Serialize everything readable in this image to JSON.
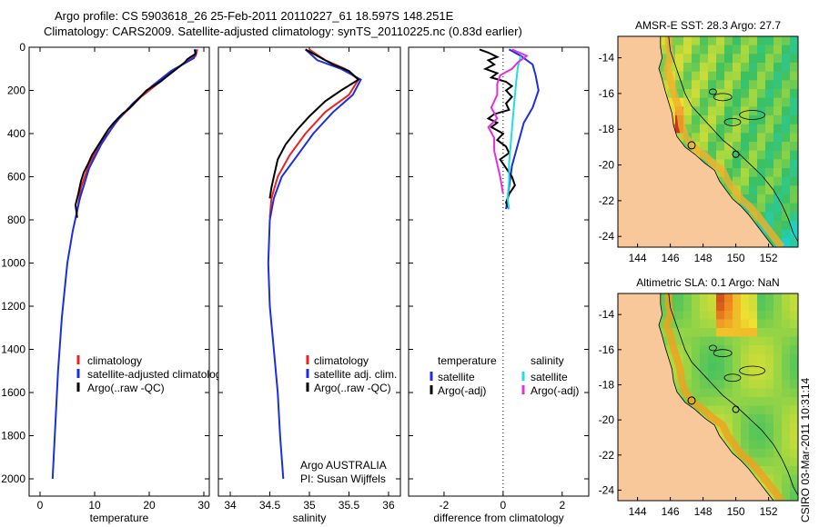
{
  "header": {
    "line1": "Argo profile: CS 5903618_26 25-Feb-2011 20110227_61 18.597S 148.251E",
    "line2": "Climatology: CARS2009. Satellite-adjusted climatology: synTS_20110225.nc (0.83d earlier)"
  },
  "colors": {
    "climatology": "#ee2020",
    "satellite": "#1c2ee0",
    "argo": "#000000",
    "cyan": "#22dde0",
    "magenta": "#e030e0",
    "land": "#f8c89a"
  },
  "chart_data": [
    {
      "type": "line",
      "name": "temperature-profile",
      "xlabel": "temperature",
      "ylabel": "",
      "xlim": [
        -2,
        31
      ],
      "ylim": [
        2080,
        0
      ],
      "xticks": [
        "0",
        "10",
        "20",
        "30"
      ],
      "yticks": [
        "0",
        "200",
        "400",
        "600",
        "800",
        "1000",
        "1200",
        "1400",
        "1600",
        "1800",
        "2000"
      ],
      "legend": [
        "climatology",
        "satellite-adjusted climatology",
        "Argo(..raw -QC)"
      ],
      "series": [
        {
          "name": "climatology",
          "color": "climatology",
          "points": [
            [
              28.8,
              10
            ],
            [
              28.5,
              40
            ],
            [
              25.5,
              90
            ],
            [
              22.5,
              150
            ],
            [
              18.5,
              230
            ],
            [
              14.5,
              330
            ],
            [
              11.2,
              440
            ],
            [
              9.0,
              540
            ],
            [
              7.5,
              650
            ],
            [
              6.6,
              790
            ]
          ]
        },
        {
          "name": "satellite-adjusted climatology",
          "color": "satellite",
          "points": [
            [
              28.6,
              10
            ],
            [
              28.2,
              50
            ],
            [
              24,
              110
            ],
            [
              20.5,
              180
            ],
            [
              17,
              260
            ],
            [
              13.8,
              350
            ],
            [
              11.2,
              450
            ],
            [
              9.0,
              560
            ],
            [
              7.3,
              700
            ],
            [
              6.0,
              850
            ],
            [
              5.0,
              1000
            ],
            [
              4.0,
              1250
            ],
            [
              3.3,
              1500
            ],
            [
              2.8,
              1750
            ],
            [
              2.3,
              2000
            ]
          ]
        },
        {
          "name": "Argo(..raw -QC)",
          "color": "argo",
          "points": [
            [
              28.3,
              10
            ],
            [
              28.5,
              30
            ],
            [
              27,
              55
            ],
            [
              26.5,
              70
            ],
            [
              25,
              100
            ],
            [
              23.5,
              130
            ],
            [
              22,
              160
            ],
            [
              19.5,
              200
            ],
            [
              18,
              240
            ],
            [
              16.5,
              280
            ],
            [
              15,
              310
            ],
            [
              13.5,
              350
            ],
            [
              12.5,
              380
            ],
            [
              11.5,
              420
            ],
            [
              10.5,
              460
            ],
            [
              9.5,
              500
            ],
            [
              8.8,
              540
            ],
            [
              8.0,
              580
            ],
            [
              7.5,
              620
            ],
            [
              7.0,
              680
            ],
            [
              6.5,
              730
            ],
            [
              6.8,
              790
            ]
          ]
        }
      ]
    },
    {
      "type": "line",
      "name": "salinity-profile",
      "xlabel": "salinity",
      "xlim": [
        33.85,
        36.15
      ],
      "ylim": [
        2080,
        0
      ],
      "xticks": [
        "34",
        "34.5",
        "35",
        "35.5",
        "36"
      ],
      "legend": [
        "climatology",
        "satellite adj. clim.",
        "Argo(..raw -QC)"
      ],
      "annotation": [
        "Argo AUSTRALIA",
        "PI: Susan Wijffels"
      ],
      "series": [
        {
          "name": "climatology",
          "color": "climatology",
          "points": [
            [
              35.0,
              10
            ],
            [
              35.2,
              60
            ],
            [
              35.45,
              100
            ],
            [
              35.62,
              150
            ],
            [
              35.5,
              220
            ],
            [
              35.2,
              300
            ],
            [
              34.95,
              400
            ],
            [
              34.75,
              500
            ],
            [
              34.6,
              600
            ],
            [
              34.52,
              700
            ],
            [
              34.5,
              790
            ]
          ]
        },
        {
          "name": "satellite adj. clim.",
          "color": "satellite",
          "points": [
            [
              34.95,
              10
            ],
            [
              35.1,
              60
            ],
            [
              35.4,
              100
            ],
            [
              35.65,
              150
            ],
            [
              35.55,
              220
            ],
            [
              35.3,
              300
            ],
            [
              35.05,
              400
            ],
            [
              34.85,
              500
            ],
            [
              34.65,
              600
            ],
            [
              34.55,
              700
            ],
            [
              34.5,
              800
            ],
            [
              34.48,
              1000
            ],
            [
              34.5,
              1200
            ],
            [
              34.55,
              1400
            ],
            [
              34.6,
              1600
            ],
            [
              34.63,
              1800
            ],
            [
              34.67,
              2000
            ]
          ]
        },
        {
          "name": "Argo(..raw -QC)",
          "color": "argo",
          "points": [
            [
              34.95,
              10
            ],
            [
              35.1,
              40
            ],
            [
              35.3,
              80
            ],
            [
              35.5,
              110
            ],
            [
              35.62,
              150
            ],
            [
              35.4,
              200
            ],
            [
              35.2,
              250
            ],
            [
              35.0,
              320
            ],
            [
              34.85,
              380
            ],
            [
              34.7,
              450
            ],
            [
              34.6,
              520
            ],
            [
              34.55,
              600
            ],
            [
              34.52,
              650
            ],
            [
              34.5,
              700
            ]
          ]
        }
      ]
    },
    {
      "type": "line",
      "name": "difference-profile",
      "xlabel": "difference from climatology",
      "xlim": [
        -3.2,
        2.9
      ],
      "ylim": [
        2080,
        0
      ],
      "xticks": [
        "-2",
        "0",
        "2"
      ],
      "legend_left": [
        "temperature",
        "satellite",
        "Argo(-adj)"
      ],
      "legend_right": [
        "salinity",
        "satellite",
        "Argo(-adj)"
      ],
      "series": [
        {
          "name": "temperature satellite",
          "color": "satellite",
          "points": [
            [
              0.2,
              10
            ],
            [
              0.6,
              40
            ],
            [
              1.0,
              80
            ],
            [
              1.1,
              130
            ],
            [
              1.2,
              200
            ],
            [
              1.0,
              280
            ],
            [
              0.7,
              350
            ],
            [
              0.5,
              450
            ],
            [
              0.3,
              550
            ],
            [
              0.2,
              650
            ],
            [
              0.1,
              750
            ]
          ]
        },
        {
          "name": "temperature Argo(-adj)",
          "color": "argo",
          "points": [
            [
              -0.8,
              10
            ],
            [
              -0.5,
              25
            ],
            [
              -0.2,
              45
            ],
            [
              -0.5,
              60
            ],
            [
              -0.3,
              80
            ],
            [
              -0.6,
              100
            ],
            [
              -0.2,
              120
            ],
            [
              -0.4,
              140
            ],
            [
              0.1,
              160
            ],
            [
              0.3,
              180
            ],
            [
              0.1,
              200
            ],
            [
              0.3,
              230
            ],
            [
              0.1,
              260
            ],
            [
              0.2,
              290
            ],
            [
              -0.3,
              310
            ],
            [
              -0.5,
              330
            ],
            [
              -0.2,
              350
            ],
            [
              -0.4,
              370
            ],
            [
              0.0,
              400
            ],
            [
              -0.2,
              430
            ],
            [
              0.1,
              460
            ],
            [
              0.2,
              490
            ],
            [
              -0.1,
              520
            ],
            [
              0.1,
              560
            ],
            [
              0.3,
              600
            ],
            [
              0.4,
              640
            ],
            [
              0.2,
              680
            ],
            [
              0.1,
              720
            ],
            [
              0.2,
              750
            ]
          ]
        },
        {
          "name": "salinity satellite",
          "color": "cyan",
          "points": [
            [
              0.6,
              40
            ],
            [
              0.5,
              90
            ],
            [
              0.45,
              150
            ],
            [
              0.4,
              220
            ],
            [
              0.35,
              300
            ],
            [
              0.3,
              380
            ],
            [
              0.25,
              460
            ],
            [
              0.2,
              540
            ],
            [
              0.2,
              620
            ],
            [
              0.15,
              700
            ],
            [
              0.2,
              750
            ]
          ]
        },
        {
          "name": "salinity Argo(-adj)",
          "color": "magenta",
          "points": [
            [
              0.3,
              10
            ],
            [
              0.8,
              40
            ],
            [
              0.5,
              70
            ],
            [
              0.3,
              100
            ],
            [
              -0.1,
              130
            ],
            [
              -0.2,
              170
            ],
            [
              -0.2,
              220
            ],
            [
              -0.4,
              280
            ],
            [
              -0.2,
              330
            ],
            [
              -0.5,
              370
            ],
            [
              -0.3,
              420
            ],
            [
              -0.3,
              480
            ],
            [
              -0.2,
              540
            ],
            [
              -0.1,
              600
            ],
            [
              0.0,
              680
            ]
          ]
        }
      ]
    },
    {
      "type": "heatmap",
      "name": "sst-map",
      "title": "AMSR-E SST: 28.3 Argo: 27.7",
      "xlim": [
        142.8,
        153.8
      ],
      "ylim": [
        -24.6,
        -12.8
      ],
      "xticks": [
        "144",
        "146",
        "148",
        "150",
        "152"
      ],
      "yticks": [
        "-14",
        "-16",
        "-18",
        "-20",
        "-22",
        "-24"
      ]
    },
    {
      "type": "heatmap",
      "name": "sla-map",
      "title": "Altimetric SLA: 0.1 Argo: NaN",
      "xlim": [
        142.8,
        153.8
      ],
      "ylim": [
        -24.6,
        -12.8
      ],
      "xticks": [
        "144",
        "146",
        "148",
        "150",
        "152"
      ],
      "yticks": [
        "-14",
        "-16",
        "-18",
        "-20",
        "-22",
        "-24"
      ]
    }
  ],
  "footer": {
    "credit": "CSIRO 03-Mar-2011 10:31:14"
  }
}
